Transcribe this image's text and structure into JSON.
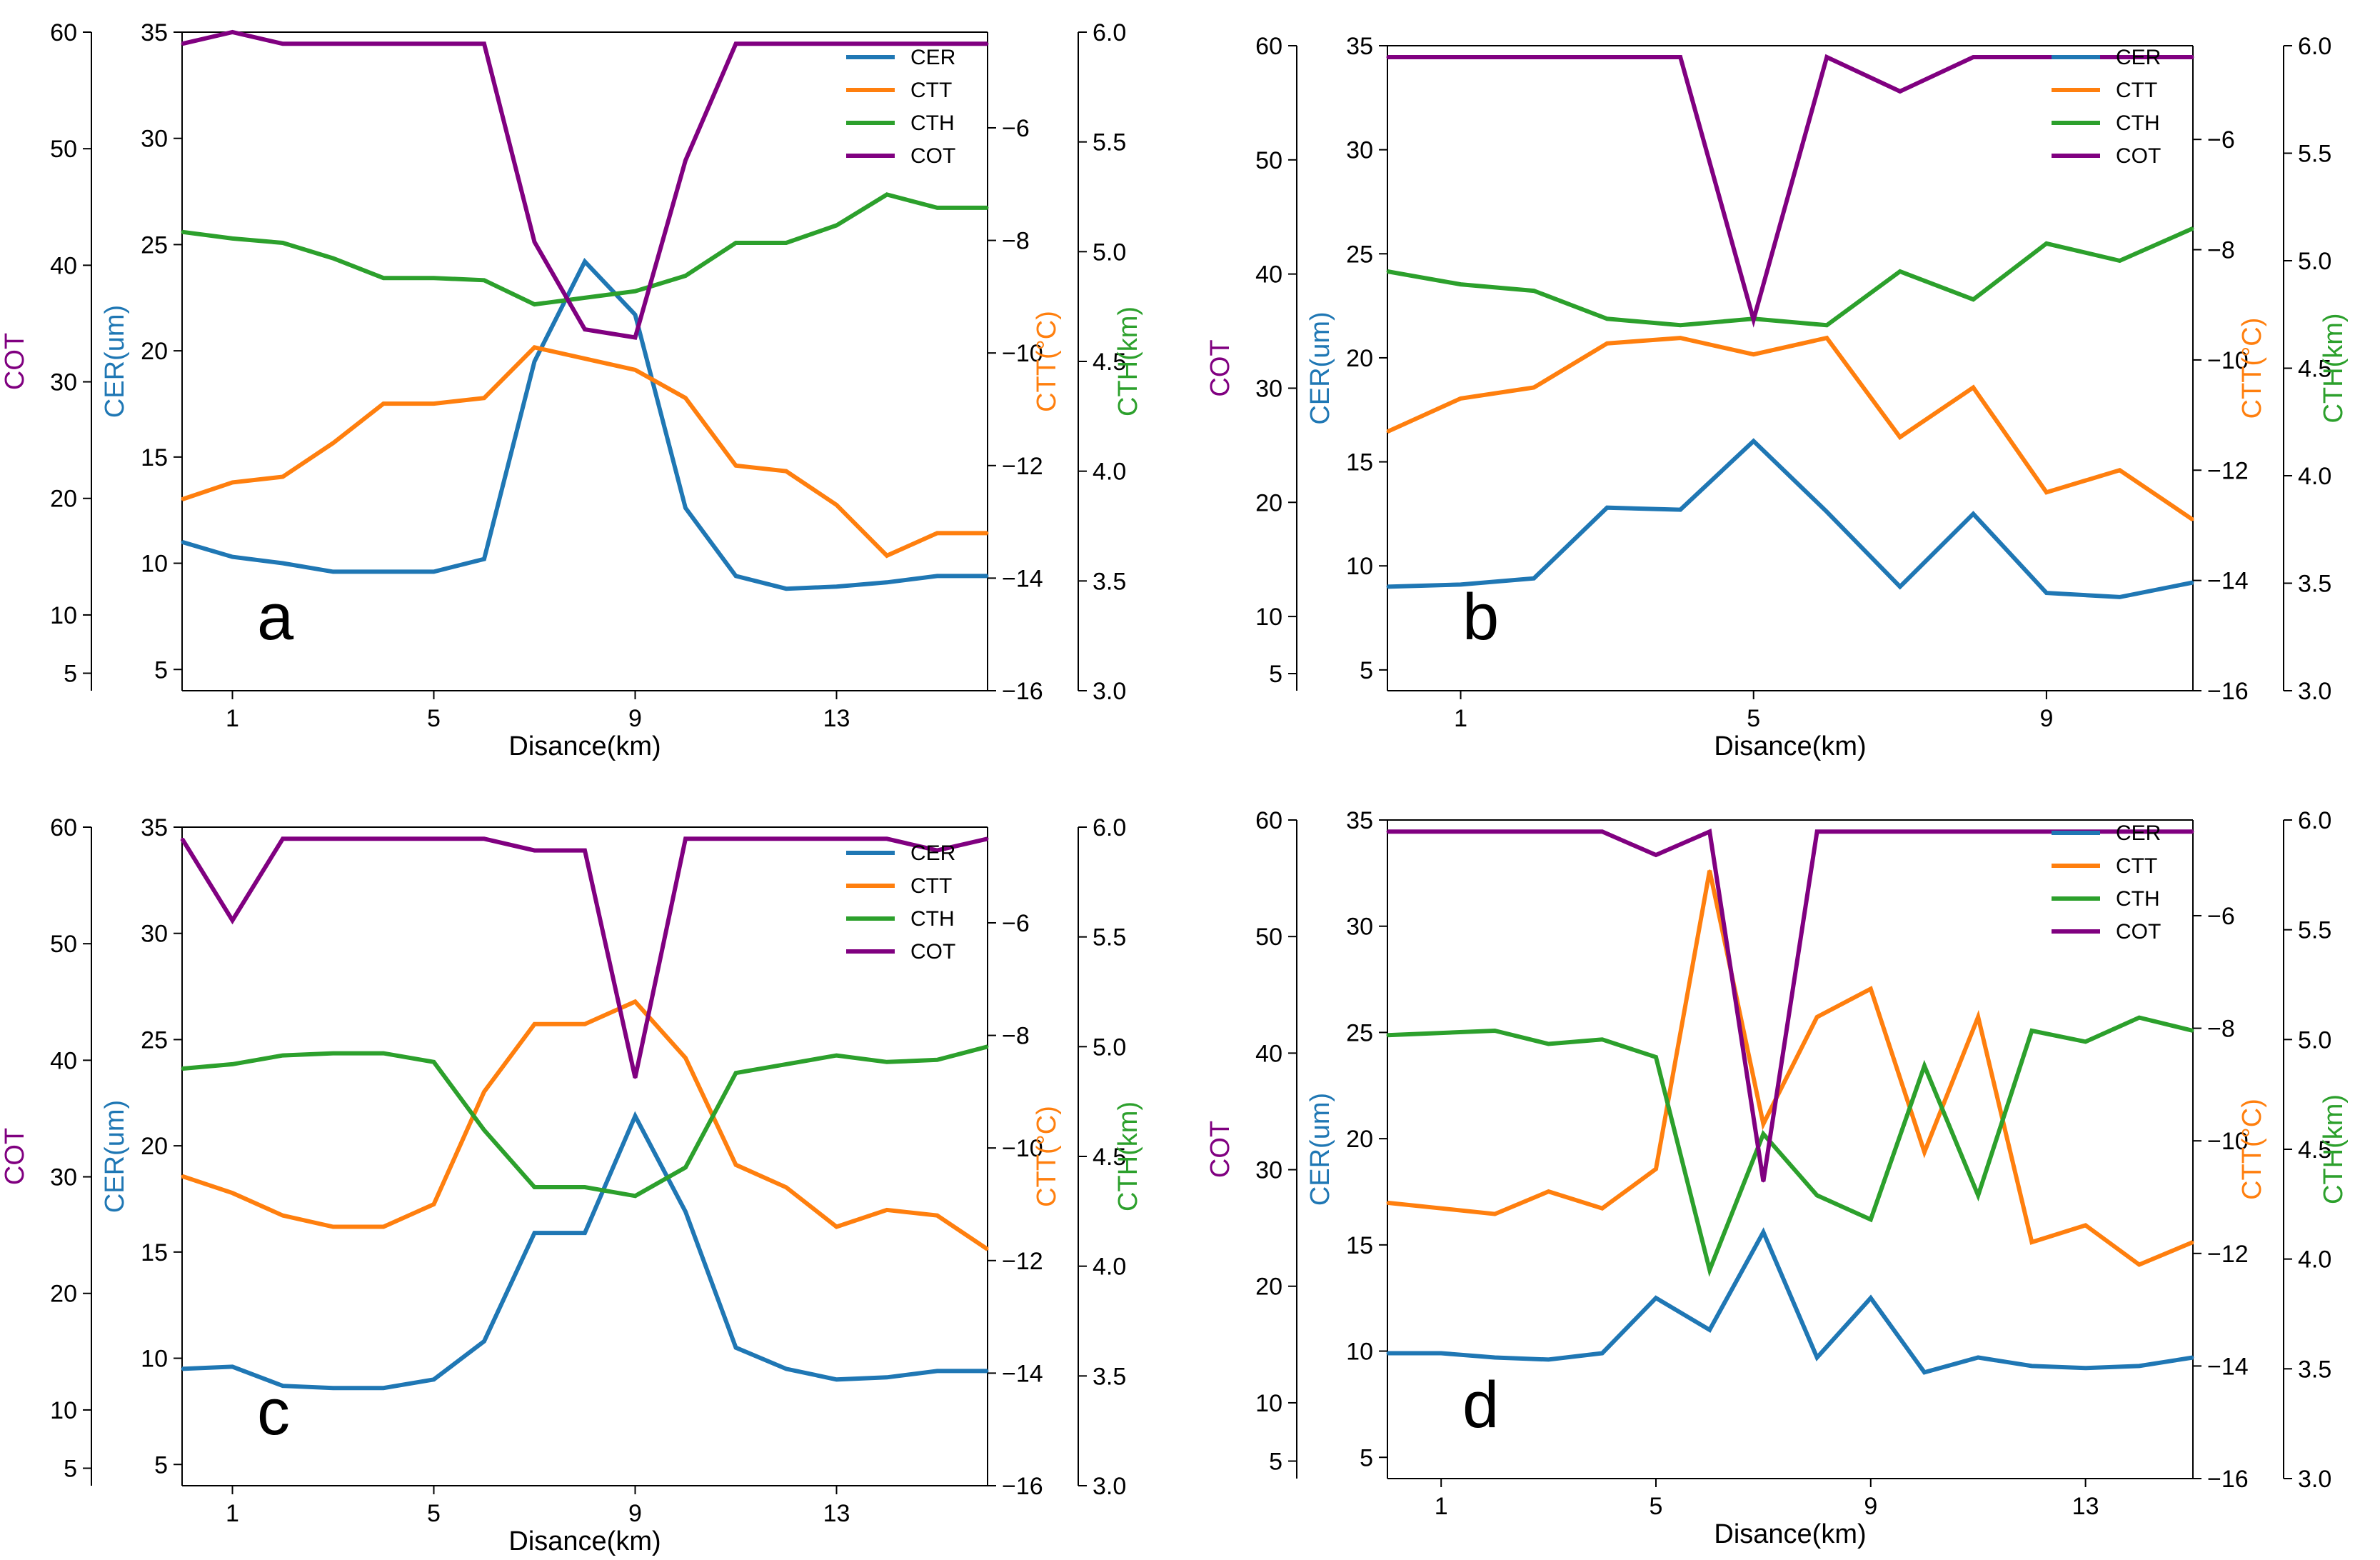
{
  "colors": {
    "CER": "#1f77b4",
    "CTT": "#ff7f0e",
    "CTH": "#2ca02c",
    "COT": "#800080"
  },
  "chart_data": [
    {
      "type": "line",
      "panel_label": "a",
      "xlabel": "Disance(km)",
      "xticks": [
        1,
        5,
        9,
        13
      ],
      "xlim": [
        0,
        16
      ],
      "axes": {
        "COT": {
          "label": "COT",
          "lim": [
            3.5,
            60
          ],
          "ticks": [
            5,
            10,
            20,
            30,
            40,
            50,
            60
          ]
        },
        "CER": {
          "label": "CER(um)",
          "lim": [
            4,
            35
          ],
          "ticks": [
            5,
            10,
            15,
            20,
            25,
            30,
            35
          ]
        },
        "CTT": {
          "label": "CTT(°C)",
          "lim": [
            -16,
            -4.3
          ],
          "ticks": [
            -6,
            -8,
            -10,
            -12,
            -14,
            -16
          ]
        },
        "CTH": {
          "label": "CTH(km)",
          "lim": [
            3.0,
            6.0
          ],
          "ticks": [
            3.0,
            3.5,
            4.0,
            4.5,
            5.0,
            5.5,
            6.0
          ]
        }
      },
      "legend": [
        "CER",
        "CTT",
        "CTH",
        "COT"
      ],
      "series": [
        {
          "name": "CER",
          "x": [
            0,
            1,
            2,
            3,
            4,
            5,
            6,
            7,
            8,
            9,
            10,
            11,
            12,
            13,
            14,
            15,
            16
          ],
          "y": [
            11.0,
            10.3,
            10.0,
            9.6,
            9.6,
            9.6,
            10.2,
            19.5,
            24.2,
            21.7,
            12.6,
            9.4,
            8.8,
            8.9,
            9.1,
            9.4,
            9.4
          ]
        },
        {
          "name": "CTT",
          "x": [
            0,
            1,
            2,
            3,
            4,
            5,
            6,
            7,
            8,
            9,
            10,
            11,
            12,
            13,
            14,
            15,
            16
          ],
          "y": [
            -12.6,
            -12.3,
            -12.2,
            -11.6,
            -10.9,
            -10.9,
            -10.8,
            -9.9,
            -10.1,
            -10.3,
            -10.8,
            -12.0,
            -12.1,
            -12.7,
            -13.6,
            -13.2,
            -13.2
          ]
        },
        {
          "name": "CTH",
          "x": [
            0,
            1,
            2,
            3,
            4,
            5,
            6,
            7,
            8,
            9,
            10,
            11,
            12,
            13,
            14,
            15,
            16
          ],
          "y": [
            5.09,
            5.06,
            5.04,
            4.97,
            4.88,
            4.88,
            4.87,
            4.76,
            4.79,
            4.82,
            4.89,
            5.04,
            5.04,
            5.12,
            5.26,
            5.2,
            5.2
          ]
        },
        {
          "name": "COT",
          "x": [
            0,
            1,
            2,
            3,
            4,
            5,
            6,
            7,
            8,
            9,
            10,
            11,
            12,
            13,
            14,
            15,
            16
          ],
          "y": [
            59.0,
            60.0,
            59.0,
            59.0,
            59.0,
            59.0,
            59.0,
            42.0,
            34.5,
            33.8,
            49.0,
            59.0,
            59.0,
            59.0,
            59.0,
            59.0,
            59.0
          ]
        }
      ]
    },
    {
      "type": "line",
      "panel_label": "b",
      "xlabel": "Disance(km)",
      "xticks": [
        1,
        5,
        9
      ],
      "xlim": [
        0,
        11
      ],
      "axes": {
        "COT": {
          "label": "COT",
          "lim": [
            3.5,
            60
          ],
          "ticks": [
            5,
            10,
            20,
            30,
            40,
            50,
            60
          ]
        },
        "CER": {
          "label": "CER(um)",
          "lim": [
            4,
            35
          ],
          "ticks": [
            5,
            10,
            15,
            20,
            25,
            30,
            35
          ]
        },
        "CTT": {
          "label": "CTT(°C)",
          "lim": [
            -16,
            -4.3
          ],
          "ticks": [
            -6,
            -8,
            -10,
            -12,
            -14,
            -16
          ]
        },
        "CTH": {
          "label": "CTH(km)",
          "lim": [
            3.0,
            6.0
          ],
          "ticks": [
            3.0,
            3.5,
            4.0,
            4.5,
            5.0,
            5.5,
            6.0
          ]
        }
      },
      "legend": [
        "CER",
        "CTT",
        "CTH",
        "COT"
      ],
      "series": [
        {
          "name": "CER",
          "x": [
            0,
            1,
            2,
            3,
            4,
            5,
            6,
            7,
            8,
            9,
            10,
            11
          ],
          "y": [
            9.0,
            9.1,
            9.4,
            12.8,
            12.7,
            16.0,
            12.6,
            9.0,
            12.5,
            8.7,
            8.5,
            9.2
          ]
        },
        {
          "name": "CTT",
          "x": [
            0,
            1,
            2,
            3,
            4,
            5,
            6,
            7,
            8,
            9,
            10,
            11
          ],
          "y": [
            -11.3,
            -10.7,
            -10.5,
            -9.7,
            -9.6,
            -9.9,
            -9.6,
            -11.4,
            -10.5,
            -12.4,
            -12.0,
            -12.9
          ]
        },
        {
          "name": "CTH",
          "x": [
            0,
            1,
            2,
            3,
            4,
            5,
            6,
            7,
            8,
            9,
            10,
            11
          ],
          "y": [
            4.95,
            4.89,
            4.86,
            4.73,
            4.7,
            4.73,
            4.7,
            4.95,
            4.82,
            5.08,
            5.0,
            5.15
          ]
        },
        {
          "name": "COT",
          "x": [
            0,
            1,
            2,
            3,
            4,
            5,
            6,
            7,
            8,
            9,
            10,
            11
          ],
          "y": [
            59.0,
            59.0,
            59.0,
            59.0,
            59.0,
            36.0,
            59.0,
            56.0,
            59.0,
            59.0,
            59.0,
            59.0
          ]
        }
      ]
    },
    {
      "type": "line",
      "panel_label": "c",
      "xlabel": "Disance(km)",
      "xticks": [
        1,
        5,
        9,
        13
      ],
      "xlim": [
        0,
        16
      ],
      "axes": {
        "COT": {
          "label": "COT",
          "lim": [
            3.5,
            60
          ],
          "ticks": [
            5,
            10,
            20,
            30,
            40,
            50,
            60
          ]
        },
        "CER": {
          "label": "CER(um)",
          "lim": [
            4,
            35
          ],
          "ticks": [
            5,
            10,
            15,
            20,
            25,
            30,
            35
          ]
        },
        "CTT": {
          "label": "CTT(°C)",
          "lim": [
            -16,
            -4.3
          ],
          "ticks": [
            -6,
            -8,
            -10,
            -12,
            -14,
            -16
          ]
        },
        "CTH": {
          "label": "CTH(km)",
          "lim": [
            3.0,
            6.0
          ],
          "ticks": [
            3.0,
            3.5,
            4.0,
            4.5,
            5.0,
            5.5,
            6.0
          ]
        }
      },
      "legend": [
        "CER",
        "CTT",
        "CTH",
        "COT"
      ],
      "series": [
        {
          "name": "CER",
          "x": [
            0,
            1,
            2,
            3,
            4,
            5,
            6,
            7,
            8,
            9,
            10,
            11,
            12,
            13,
            14,
            15,
            16
          ],
          "y": [
            9.5,
            9.6,
            8.7,
            8.6,
            8.6,
            9.0,
            10.8,
            15.9,
            15.9,
            21.4,
            16.9,
            10.5,
            9.5,
            9.0,
            9.1,
            9.4,
            9.4
          ]
        },
        {
          "name": "CTT",
          "x": [
            0,
            1,
            2,
            3,
            4,
            5,
            6,
            7,
            8,
            9,
            10,
            11,
            12,
            13,
            14,
            15,
            16
          ],
          "y": [
            -10.5,
            -10.8,
            -11.2,
            -11.4,
            -11.4,
            -11.0,
            -9.0,
            -7.8,
            -7.8,
            -7.4,
            -8.4,
            -10.3,
            -10.7,
            -11.4,
            -11.1,
            -11.2,
            -11.8
          ]
        },
        {
          "name": "CTH",
          "x": [
            0,
            1,
            2,
            3,
            4,
            5,
            6,
            7,
            8,
            9,
            10,
            11,
            12,
            13,
            14,
            15,
            16
          ],
          "y": [
            4.9,
            4.92,
            4.96,
            4.97,
            4.97,
            4.93,
            4.62,
            4.36,
            4.36,
            4.32,
            4.45,
            4.88,
            4.92,
            4.96,
            4.93,
            4.94,
            5.0
          ]
        },
        {
          "name": "COT",
          "x": [
            0,
            1,
            2,
            3,
            4,
            5,
            6,
            7,
            8,
            9,
            10,
            11,
            12,
            13,
            14,
            15,
            16
          ],
          "y": [
            59.0,
            52.0,
            59.0,
            59.0,
            59.0,
            59.0,
            59.0,
            58.0,
            58.0,
            38.5,
            59.0,
            59.0,
            59.0,
            59.0,
            59.0,
            58.0,
            59.0
          ]
        }
      ]
    },
    {
      "type": "line",
      "panel_label": "d",
      "xlabel": "Disance(km)",
      "xticks": [
        1,
        5,
        9,
        13
      ],
      "xlim": [
        0,
        15
      ],
      "axes": {
        "COT": {
          "label": "COT",
          "lim": [
            3.5,
            60
          ],
          "ticks": [
            5,
            10,
            20,
            30,
            40,
            50,
            60
          ]
        },
        "CER": {
          "label": "CER(um)",
          "lim": [
            4,
            35
          ],
          "ticks": [
            5,
            10,
            15,
            20,
            25,
            30,
            35
          ]
        },
        "CTT": {
          "label": "CTT(°C)",
          "lim": [
            -16,
            -4.3
          ],
          "ticks": [
            -6,
            -8,
            -10,
            -12,
            -14,
            -16
          ]
        },
        "CTH": {
          "label": "CTH(km)",
          "lim": [
            3.0,
            6.0
          ],
          "ticks": [
            3.0,
            3.5,
            4.0,
            4.5,
            5.0,
            5.5,
            6.0
          ]
        }
      },
      "legend": [
        "CER",
        "CTT",
        "CTH",
        "COT"
      ],
      "series": [
        {
          "name": "CER",
          "x": [
            0,
            1,
            2,
            3,
            4,
            5,
            6,
            7,
            8,
            9,
            10,
            11,
            12,
            13,
            14,
            15
          ],
          "y": [
            9.9,
            9.9,
            9.7,
            9.6,
            9.9,
            12.5,
            11.0,
            15.6,
            9.7,
            12.5,
            9.0,
            9.7,
            9.3,
            9.2,
            9.3,
            9.7
          ]
        },
        {
          "name": "CTT",
          "x": [
            0,
            1,
            2,
            3,
            4,
            5,
            6,
            7,
            8,
            9,
            10,
            11,
            12,
            13,
            14,
            15
          ],
          "y": [
            -11.1,
            -11.2,
            -11.3,
            -10.9,
            -11.2,
            -10.5,
            -5.2,
            -9.7,
            -7.8,
            -7.3,
            -10.2,
            -7.8,
            -11.8,
            -11.5,
            -12.2,
            -11.8
          ]
        },
        {
          "name": "CTH",
          "x": [
            0,
            1,
            2,
            3,
            4,
            5,
            6,
            7,
            8,
            9,
            10,
            11,
            12,
            13,
            14,
            15
          ],
          "y": [
            5.02,
            5.03,
            5.04,
            4.98,
            5.0,
            4.92,
            3.95,
            4.57,
            4.29,
            4.18,
            4.88,
            4.29,
            5.04,
            4.99,
            5.1,
            5.04
          ]
        },
        {
          "name": "COT",
          "x": [
            0,
            1,
            2,
            3,
            4,
            5,
            6,
            7,
            8,
            9,
            10,
            11,
            12,
            13,
            14,
            15
          ],
          "y": [
            59.0,
            59.0,
            59.0,
            59.0,
            59.0,
            57.0,
            59.0,
            29.0,
            59.0,
            59.0,
            59.0,
            59.0,
            59.0,
            59.0,
            59.0,
            59.0
          ]
        }
      ]
    }
  ]
}
